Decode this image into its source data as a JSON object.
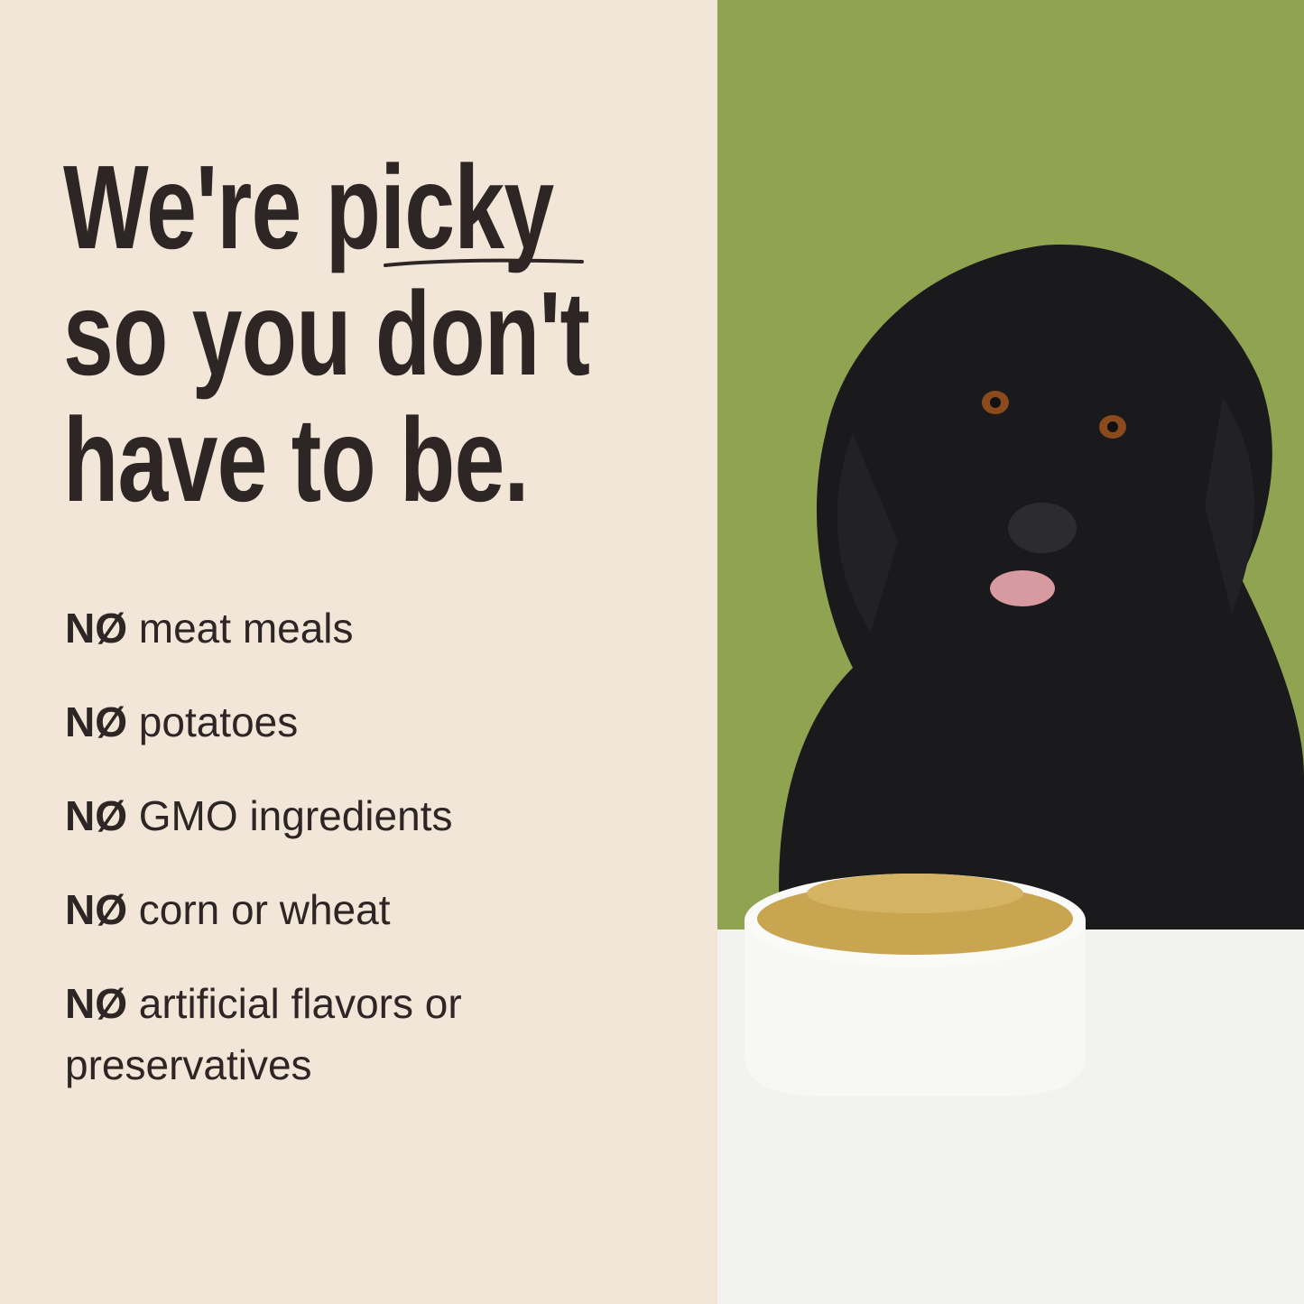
{
  "headline": {
    "line1_a": "We're ",
    "line1_b": "picky",
    "line2": "so you don't",
    "line3": "have to be."
  },
  "list": {
    "prefix": "NØ",
    "items": [
      {
        "text": "meat meals"
      },
      {
        "text": "potatoes"
      },
      {
        "text": "GMO ingredients"
      },
      {
        "text": "corn or wheat"
      },
      {
        "text": "artificial flavors or preservatives"
      }
    ]
  },
  "colors": {
    "background": "#f1e6d8",
    "text": "#2e2624",
    "wall": "#8fa350",
    "table": "#f2f2f0"
  }
}
